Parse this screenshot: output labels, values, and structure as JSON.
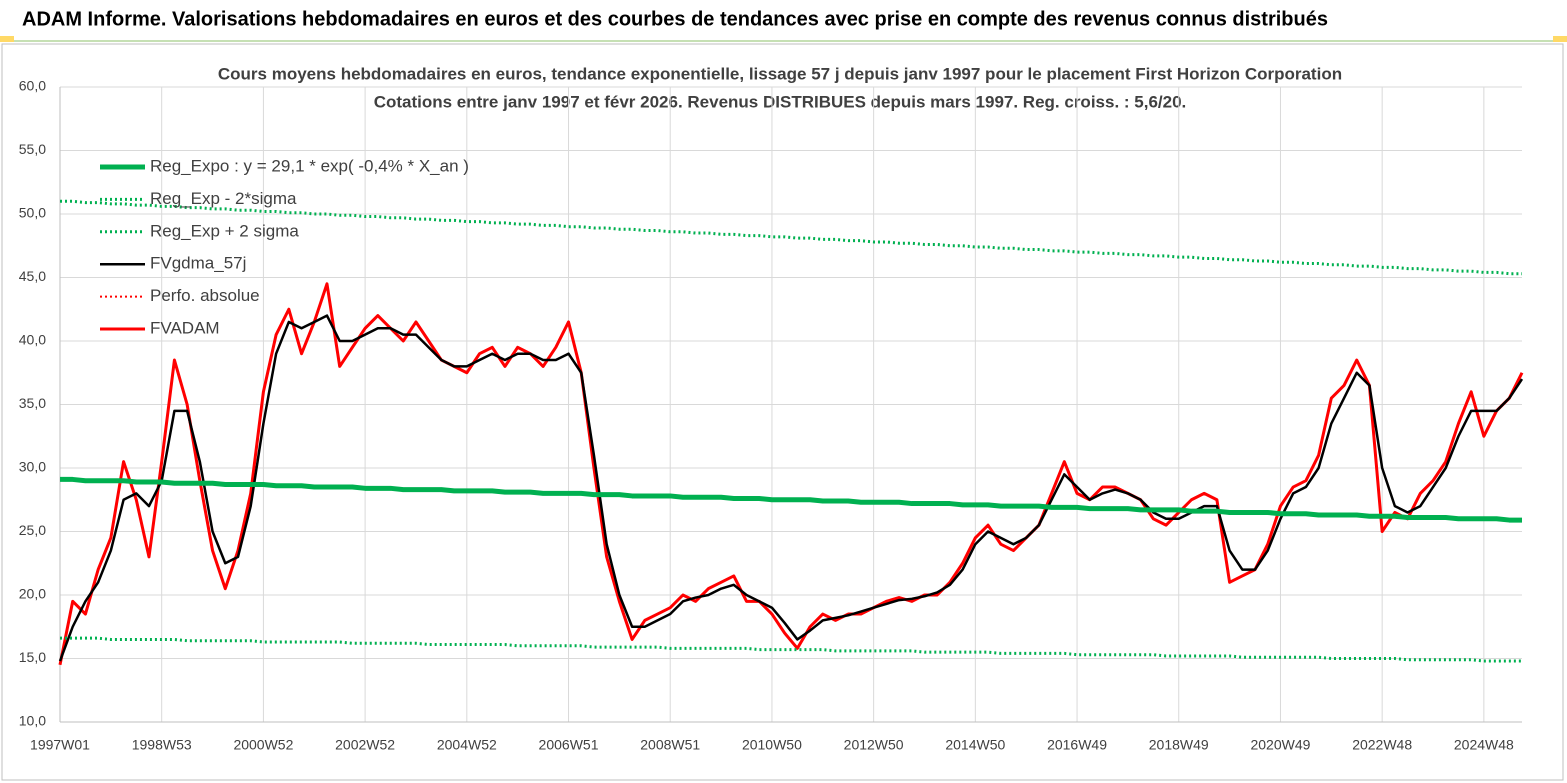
{
  "header": {
    "title": "ADAM Informe. Valorisations hebdomadaires en euros et des courbes de tendances avec prise en compte des revenus connus distribués"
  },
  "chart_data": {
    "type": "line",
    "title": "Cours moyens hebdomadaires en euros, tendance exponentielle, lissage 57 j depuis janv 1997 pour le placement First Horizon Corporation",
    "subtitle": "Cotations entre janv 1997 et févr 2026. Revenus DISTRIBUES depuis mars 1997. Reg. croiss. : 5,6/20.",
    "ylim": [
      10,
      60
    ],
    "yticks": [
      {
        "value": 10,
        "label": "10,0"
      },
      {
        "value": 15,
        "label": "15,0"
      },
      {
        "value": 20,
        "label": "20,0"
      },
      {
        "value": 25,
        "label": "25,0"
      },
      {
        "value": 30,
        "label": "30,0"
      },
      {
        "value": 35,
        "label": "35,0"
      },
      {
        "value": 40,
        "label": "40,0"
      },
      {
        "value": 45,
        "label": "45,0"
      },
      {
        "value": 50,
        "label": "50,0"
      },
      {
        "value": 55,
        "label": "55,0"
      },
      {
        "value": 60,
        "label": "60,0"
      }
    ],
    "grid": true,
    "legend": "upper-left",
    "categories": [
      "1997W01",
      null,
      null,
      null,
      null,
      null,
      null,
      null,
      "1998W53",
      null,
      null,
      null,
      null,
      null,
      null,
      null,
      "2000W52",
      null,
      null,
      null,
      null,
      null,
      null,
      null,
      "2002W52",
      null,
      null,
      null,
      null,
      null,
      null,
      null,
      "2004W52",
      null,
      null,
      null,
      null,
      null,
      null,
      null,
      "2006W51",
      null,
      null,
      null,
      null,
      null,
      null,
      null,
      "2008W51",
      null,
      null,
      null,
      null,
      null,
      null,
      null,
      "2010W50",
      null,
      null,
      null,
      null,
      null,
      null,
      null,
      "2012W50",
      null,
      null,
      null,
      null,
      null,
      null,
      null,
      "2014W50",
      null,
      null,
      null,
      null,
      null,
      null,
      null,
      "2016W49",
      null,
      null,
      null,
      null,
      null,
      null,
      null,
      "2018W49",
      null,
      null,
      null,
      null,
      null,
      null,
      null,
      "2020W49",
      null,
      null,
      null,
      null,
      null,
      null,
      null,
      "2022W48",
      null,
      null,
      null,
      null,
      null,
      null,
      null,
      "2024W48",
      null,
      null,
      null
    ],
    "series": [
      {
        "name": "Reg_Expo : y = 29,1 * exp( -0,4% *  X_an )",
        "color": "#00b050",
        "style": "solid",
        "width": 5,
        "values": [
          29.1,
          29.1,
          29.0,
          29.0,
          29.0,
          29.0,
          28.9,
          28.9,
          28.9,
          28.8,
          28.8,
          28.8,
          28.8,
          28.7,
          28.7,
          28.7,
          28.7,
          28.6,
          28.6,
          28.6,
          28.5,
          28.5,
          28.5,
          28.5,
          28.4,
          28.4,
          28.4,
          28.3,
          28.3,
          28.3,
          28.3,
          28.2,
          28.2,
          28.2,
          28.2,
          28.1,
          28.1,
          28.1,
          28.0,
          28.0,
          28.0,
          28.0,
          27.9,
          27.9,
          27.9,
          27.8,
          27.8,
          27.8,
          27.8,
          27.7,
          27.7,
          27.7,
          27.7,
          27.6,
          27.6,
          27.6,
          27.5,
          27.5,
          27.5,
          27.5,
          27.4,
          27.4,
          27.4,
          27.3,
          27.3,
          27.3,
          27.3,
          27.2,
          27.2,
          27.2,
          27.2,
          27.1,
          27.1,
          27.1,
          27.0,
          27.0,
          27.0,
          27.0,
          26.9,
          26.9,
          26.9,
          26.8,
          26.8,
          26.8,
          26.8,
          26.7,
          26.7,
          26.7,
          26.7,
          26.6,
          26.6,
          26.6,
          26.5,
          26.5,
          26.5,
          26.5,
          26.4,
          26.4,
          26.4,
          26.3,
          26.3,
          26.3,
          26.3,
          26.2,
          26.2,
          26.2,
          26.1,
          26.1,
          26.1,
          26.1,
          26.0,
          26.0,
          26.0,
          26.0,
          25.9,
          25.9
        ]
      },
      {
        "name": "Reg_Exp - 2*sigma",
        "color": "#00b050",
        "style": "dotted",
        "width": 3,
        "values": [
          16.6,
          16.6,
          16.6,
          16.6,
          16.5,
          16.5,
          16.5,
          16.5,
          16.5,
          16.5,
          16.4,
          16.4,
          16.4,
          16.4,
          16.4,
          16.4,
          16.3,
          16.3,
          16.3,
          16.3,
          16.3,
          16.3,
          16.3,
          16.2,
          16.2,
          16.2,
          16.2,
          16.2,
          16.2,
          16.1,
          16.1,
          16.1,
          16.1,
          16.1,
          16.1,
          16.1,
          16.0,
          16.0,
          16.0,
          16.0,
          16.0,
          16.0,
          15.9,
          15.9,
          15.9,
          15.9,
          15.9,
          15.9,
          15.8,
          15.8,
          15.8,
          15.8,
          15.8,
          15.8,
          15.8,
          15.7,
          15.7,
          15.7,
          15.7,
          15.7,
          15.7,
          15.6,
          15.6,
          15.6,
          15.6,
          15.6,
          15.6,
          15.6,
          15.5,
          15.5,
          15.5,
          15.5,
          15.5,
          15.5,
          15.4,
          15.4,
          15.4,
          15.4,
          15.4,
          15.4,
          15.3,
          15.3,
          15.3,
          15.3,
          15.3,
          15.3,
          15.3,
          15.2,
          15.2,
          15.2,
          15.2,
          15.2,
          15.2,
          15.1,
          15.1,
          15.1,
          15.1,
          15.1,
          15.1,
          15.1,
          15.0,
          15.0,
          15.0,
          15.0,
          15.0,
          15.0,
          14.9,
          14.9,
          14.9,
          14.9,
          14.9,
          14.9,
          14.8,
          14.8,
          14.8,
          14.8
        ]
      },
      {
        "name": "Reg_Exp + 2 sigma",
        "color": "#00b050",
        "style": "dotted",
        "width": 3,
        "values": [
          51.0,
          51.0,
          50.9,
          50.9,
          50.8,
          50.8,
          50.7,
          50.7,
          50.6,
          50.6,
          50.5,
          50.5,
          50.4,
          50.4,
          50.3,
          50.3,
          50.2,
          50.2,
          50.1,
          50.1,
          50.0,
          50.0,
          49.9,
          49.9,
          49.8,
          49.8,
          49.7,
          49.7,
          49.6,
          49.6,
          49.5,
          49.5,
          49.4,
          49.4,
          49.3,
          49.3,
          49.2,
          49.2,
          49.1,
          49.1,
          49.0,
          49.0,
          48.9,
          48.9,
          48.8,
          48.8,
          48.7,
          48.7,
          48.6,
          48.6,
          48.5,
          48.5,
          48.4,
          48.4,
          48.3,
          48.3,
          48.2,
          48.2,
          48.1,
          48.1,
          48.0,
          48.0,
          47.9,
          47.9,
          47.8,
          47.8,
          47.7,
          47.7,
          47.6,
          47.6,
          47.5,
          47.5,
          47.4,
          47.4,
          47.3,
          47.3,
          47.2,
          47.2,
          47.1,
          47.1,
          47.0,
          47.0,
          46.9,
          46.9,
          46.8,
          46.8,
          46.7,
          46.7,
          46.6,
          46.6,
          46.5,
          46.5,
          46.4,
          46.4,
          46.3,
          46.3,
          46.2,
          46.2,
          46.1,
          46.1,
          46.0,
          46.0,
          45.9,
          45.9,
          45.8,
          45.8,
          45.7,
          45.7,
          45.6,
          45.6,
          45.5,
          45.5,
          45.4,
          45.4,
          45.3,
          45.3
        ]
      },
      {
        "name": "FVgdma_57j",
        "color": "#000000",
        "style": "solid",
        "width": 2.5,
        "values": [
          14.8,
          17.5,
          19.5,
          21.0,
          23.5,
          27.5,
          28.0,
          27.0,
          29.0,
          34.5,
          34.5,
          30.5,
          25.0,
          22.5,
          23.0,
          27.0,
          33.5,
          39.0,
          41.5,
          41.0,
          41.5,
          42.0,
          40.0,
          40.0,
          40.5,
          41.0,
          41.0,
          40.5,
          40.5,
          39.5,
          38.5,
          38.0,
          38.0,
          38.5,
          39.0,
          38.5,
          39.0,
          39.0,
          38.5,
          38.5,
          39.0,
          37.5,
          31.0,
          24.0,
          20.0,
          17.5,
          17.5,
          18.0,
          18.5,
          19.5,
          19.8,
          20.0,
          20.5,
          20.8,
          20.0,
          19.5,
          19.0,
          17.8,
          16.5,
          17.2,
          18.0,
          18.2,
          18.4,
          18.7,
          19.0,
          19.3,
          19.6,
          19.7,
          19.9,
          20.2,
          20.8,
          22.0,
          24.0,
          25.0,
          24.5,
          24.0,
          24.5,
          25.5,
          27.5,
          29.5,
          28.5,
          27.5,
          28.0,
          28.3,
          28.0,
          27.5,
          26.5,
          26.0,
          26.0,
          26.5,
          27.0,
          27.0,
          23.5,
          22.0,
          22.0,
          23.5,
          26.0,
          28.0,
          28.5,
          30.0,
          33.5,
          35.5,
          37.5,
          36.5,
          30.0,
          27.0,
          26.5,
          27.0,
          28.5,
          30.0,
          32.5,
          34.5,
          34.5,
          34.5,
          35.5,
          37.0
        ]
      },
      {
        "name": "Perfo. absolue",
        "color": "#ff0000",
        "style": "dotted",
        "width": 2,
        "values": [
          null,
          null,
          null,
          null,
          null,
          null,
          null,
          null,
          null,
          null,
          null,
          null,
          null,
          null,
          null,
          null,
          null,
          null,
          null,
          null,
          null,
          null,
          null,
          null,
          null,
          null,
          null,
          null,
          null,
          null,
          null,
          null,
          null,
          null,
          null,
          null,
          null,
          null,
          null,
          null,
          null,
          null,
          null,
          null,
          null,
          null,
          null,
          null,
          null,
          null,
          null,
          null,
          null,
          null,
          null,
          null,
          null,
          null,
          null,
          null,
          null,
          null,
          null,
          null,
          null,
          null,
          null,
          null,
          null,
          null,
          null,
          null,
          null,
          null,
          null,
          null,
          null,
          null,
          null,
          null,
          null,
          null,
          null,
          null,
          null,
          null,
          null,
          null,
          null,
          null,
          null,
          null,
          null,
          null,
          null,
          null,
          null,
          null,
          null,
          null,
          null,
          null,
          null,
          null,
          null,
          null,
          null,
          null,
          null,
          null,
          null,
          null,
          null,
          null,
          null,
          null
        ]
      },
      {
        "name": "FVADAM",
        "color": "#ff0000",
        "style": "solid",
        "width": 3,
        "values": [
          14.5,
          19.5,
          18.5,
          22.0,
          24.5,
          30.5,
          27.5,
          23.0,
          30.5,
          38.5,
          35.0,
          29.0,
          23.5,
          20.5,
          23.5,
          28.0,
          36.0,
          40.5,
          42.5,
          39.0,
          41.5,
          44.5,
          38.0,
          39.5,
          41.0,
          42.0,
          41.0,
          40.0,
          41.5,
          40.0,
          38.5,
          38.0,
          37.5,
          39.0,
          39.5,
          38.0,
          39.5,
          39.0,
          38.0,
          39.5,
          41.5,
          37.5,
          30.0,
          23.0,
          19.5,
          16.5,
          18.0,
          18.5,
          19.0,
          20.0,
          19.5,
          20.5,
          21.0,
          21.5,
          19.5,
          19.5,
          18.5,
          17.0,
          15.8,
          17.5,
          18.5,
          18.0,
          18.5,
          18.5,
          19.0,
          19.5,
          19.8,
          19.5,
          20.0,
          20.0,
          21.0,
          22.5,
          24.5,
          25.5,
          24.0,
          23.5,
          24.5,
          25.5,
          28.0,
          30.5,
          28.0,
          27.5,
          28.5,
          28.5,
          28.0,
          27.5,
          26.0,
          25.5,
          26.5,
          27.5,
          28.0,
          27.5,
          21.0,
          21.5,
          22.0,
          24.0,
          27.0,
          28.5,
          29.0,
          31.0,
          35.5,
          36.5,
          38.5,
          36.5,
          25.0,
          26.5,
          26.0,
          28.0,
          29.0,
          30.5,
          33.5,
          36.0,
          32.5,
          34.5,
          35.5,
          37.5
        ]
      }
    ]
  }
}
